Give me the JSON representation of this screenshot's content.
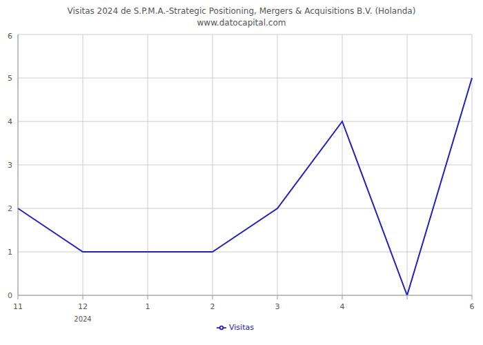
{
  "chart_data": {
    "type": "line",
    "title": "Visitas 2024 de S.P.M.A.-Strategic Positioning, Mergers & Acquisitions B.V. (Holanda) www.datocapital.com",
    "categories": [
      "11",
      "12",
      "1",
      "2",
      "3",
      "4",
      null,
      "6"
    ],
    "series": [
      {
        "name": "Visitas",
        "color": "#2020c0",
        "values": [
          2,
          1,
          1,
          1,
          2,
          4,
          0,
          5
        ]
      }
    ],
    "annotations": [
      {
        "text": "2024",
        "category": "12"
      }
    ],
    "ylim": [
      0,
      6
    ],
    "yticks": [
      0,
      1,
      2,
      3,
      4,
      5,
      6
    ],
    "grid": true,
    "legend": "bottom"
  }
}
